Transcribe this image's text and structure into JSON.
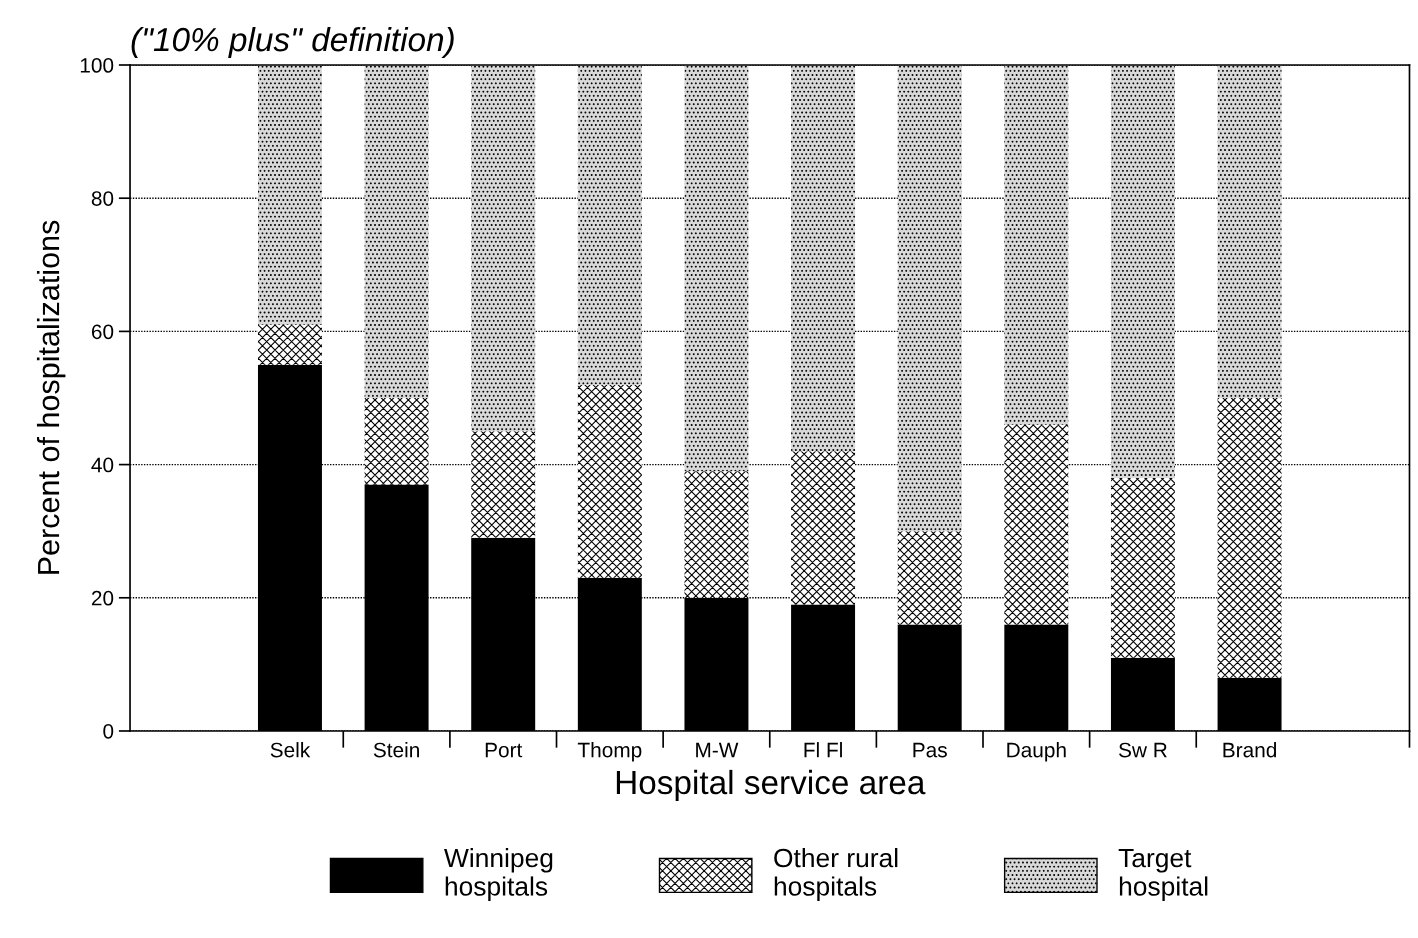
{
  "chart_data": {
    "type": "bar",
    "stacked": true,
    "title": "(\"10% plus\" definition)",
    "xlabel": "Hospital service area",
    "ylabel": "Percent of hospitalizations",
    "categories": [
      "Selk",
      "Stein",
      "Port",
      "Thomp",
      "M-W",
      "Fl Fl",
      "Pas",
      "Dauph",
      "Sw R",
      "Brand"
    ],
    "series": [
      {
        "name": "Winnipeg\nhospitals",
        "color": "#000000",
        "values": [
          55,
          37,
          29,
          23,
          20,
          19,
          16,
          16,
          11,
          8
        ]
      },
      {
        "name": "Other rural\nhospitals",
        "color": "#ffffff",
        "values": [
          6,
          13,
          16,
          29,
          19,
          23,
          14,
          30,
          27,
          42
        ]
      },
      {
        "name": "Target\nhospital",
        "color": "#d9d9d9",
        "values": [
          39,
          50,
          55,
          48,
          61,
          58,
          70,
          54,
          62,
          50
        ]
      }
    ],
    "ylim": [
      0,
      100
    ],
    "yticks": [
      0,
      20,
      40,
      60,
      80,
      100
    ],
    "grid": "y",
    "legend": "bottom"
  }
}
